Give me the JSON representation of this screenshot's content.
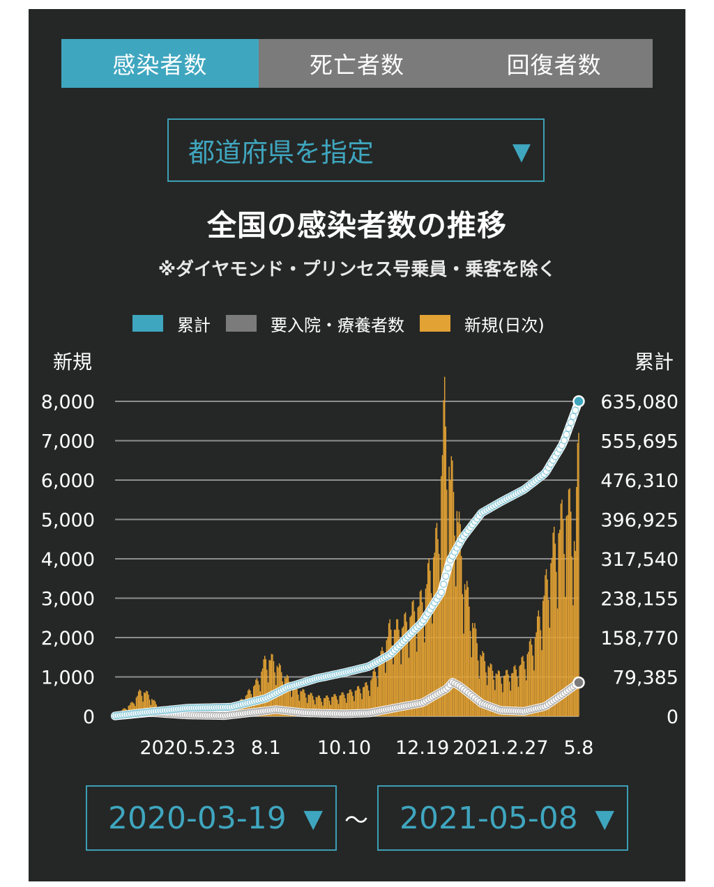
{
  "tabs": [
    {
      "label": "感染者数",
      "active": true
    },
    {
      "label": "死亡者数",
      "active": false
    },
    {
      "label": "回復者数",
      "active": false
    }
  ],
  "prefecture_select": {
    "label": "都道府県を指定",
    "arrow": "▼"
  },
  "date_range": {
    "start": "2020-03-19",
    "end": "2021-05-08",
    "separator": "〜",
    "arrow": "▼"
  },
  "colors": {
    "cumulative": "#3fa6bf",
    "inpatients": "#7b7b7b",
    "new_daily": "#e3a234",
    "line": "#ffffff",
    "grid": "#8e8e8e",
    "panel": "#252726"
  },
  "chart_data": {
    "type": "bar",
    "title": "全国の感染者数の推移",
    "subtitle": "※ダイヤモンド・プリンセス号乗員・乗客を除く",
    "legend": [
      {
        "name": "累計",
        "color": "#3fa6bf"
      },
      {
        "name": "要入院・療養者数",
        "color": "#7b7b7b"
      },
      {
        "name": "新規(日次)",
        "color": "#e3a234"
      }
    ],
    "legend_placement": "top",
    "y_left_label": "新規",
    "y_right_label": "累計",
    "y_left_ticks": [
      "0",
      "1,000",
      "2,000",
      "3,000",
      "4,000",
      "5,000",
      "6,000",
      "7,000",
      "8,000"
    ],
    "y_right_ticks": [
      "0",
      "79,385",
      "158,770",
      "238,155",
      "317,540",
      "396,925",
      "476,310",
      "555,695",
      "635,080"
    ],
    "y_left_range": [
      0,
      8000
    ],
    "y_right_range": [
      0,
      635080
    ],
    "x_range": [
      "2020-03-19",
      "2021-05-08"
    ],
    "x_ticks": [
      {
        "label": "2020.5.23",
        "date": "2020-05-23"
      },
      {
        "label": "8.1",
        "date": "2020-08-01"
      },
      {
        "label": "10.10",
        "date": "2020-10-10"
      },
      {
        "label": "12.19",
        "date": "2020-12-19"
      },
      {
        "label": "2021.2.27",
        "date": "2021-02-27"
      },
      {
        "label": "5.8",
        "date": "2021-05-08"
      }
    ],
    "grid": true,
    "new_daily_anchors": [
      [
        "2020-03-19",
        40
      ],
      [
        "2020-03-28",
        200
      ],
      [
        "2020-04-04",
        350
      ],
      [
        "2020-04-11",
        650
      ],
      [
        "2020-04-18",
        550
      ],
      [
        "2020-04-25",
        300
      ],
      [
        "2020-05-05",
        120
      ],
      [
        "2020-05-15",
        40
      ],
      [
        "2020-06-01",
        30
      ],
      [
        "2020-06-20",
        60
      ],
      [
        "2020-07-05",
        250
      ],
      [
        "2020-07-15",
        550
      ],
      [
        "2020-07-25",
        900
      ],
      [
        "2020-08-01",
        1450
      ],
      [
        "2020-08-08",
        1400
      ],
      [
        "2020-08-18",
        1000
      ],
      [
        "2020-08-28",
        700
      ],
      [
        "2020-09-08",
        550
      ],
      [
        "2020-09-20",
        450
      ],
      [
        "2020-10-01",
        500
      ],
      [
        "2020-10-10",
        550
      ],
      [
        "2020-10-20",
        650
      ],
      [
        "2020-11-01",
        800
      ],
      [
        "2020-11-10",
        1300
      ],
      [
        "2020-11-20",
        2200
      ],
      [
        "2020-11-30",
        2200
      ],
      [
        "2020-12-10",
        2600
      ],
      [
        "2020-12-19",
        2900
      ],
      [
        "2020-12-26",
        3700
      ],
      [
        "2021-01-02",
        4500
      ],
      [
        "2021-01-08",
        7700
      ],
      [
        "2021-01-13",
        6000
      ],
      [
        "2021-01-18",
        5500
      ],
      [
        "2021-01-25",
        3500
      ],
      [
        "2021-02-01",
        2500
      ],
      [
        "2021-02-08",
        1600
      ],
      [
        "2021-02-18",
        1200
      ],
      [
        "2021-02-27",
        1000
      ],
      [
        "2021-03-10",
        1100
      ],
      [
        "2021-03-20",
        1400
      ],
      [
        "2021-03-30",
        2000
      ],
      [
        "2021-04-08",
        3200
      ],
      [
        "2021-04-16",
        4300
      ],
      [
        "2021-04-24",
        5000
      ],
      [
        "2021-05-01",
        5200
      ],
      [
        "2021-05-05",
        4200
      ],
      [
        "2021-05-08",
        7200
      ]
    ],
    "cumulative_anchors": [
      [
        "2020-03-19",
        900
      ],
      [
        "2020-04-15",
        8000
      ],
      [
        "2020-05-23",
        16500
      ],
      [
        "2020-07-01",
        18500
      ],
      [
        "2020-08-01",
        36000
      ],
      [
        "2020-08-20",
        58000
      ],
      [
        "2020-09-15",
        76000
      ],
      [
        "2020-10-10",
        88000
      ],
      [
        "2020-11-01",
        100000
      ],
      [
        "2020-11-20",
        124000
      ],
      [
        "2020-12-19",
        190000
      ],
      [
        "2021-01-05",
        250000
      ],
      [
        "2021-01-13",
        315000
      ],
      [
        "2021-01-24",
        360000
      ],
      [
        "2021-02-10",
        410000
      ],
      [
        "2021-02-27",
        432000
      ],
      [
        "2021-03-20",
        457000
      ],
      [
        "2021-04-08",
        490000
      ],
      [
        "2021-04-24",
        550000
      ],
      [
        "2021-05-08",
        635080
      ]
    ],
    "inpatients_anchors": [
      [
        "2020-03-19",
        500
      ],
      [
        "2020-04-20",
        7500
      ],
      [
        "2020-05-23",
        2500
      ],
      [
        "2020-06-25",
        1200
      ],
      [
        "2020-08-01",
        11000
      ],
      [
        "2020-08-10",
        13500
      ],
      [
        "2020-09-05",
        7000
      ],
      [
        "2020-10-10",
        5000
      ],
      [
        "2020-11-01",
        6500
      ],
      [
        "2020-11-25",
        17000
      ],
      [
        "2020-12-19",
        27000
      ],
      [
        "2021-01-10",
        56000
      ],
      [
        "2021-01-15",
        69000
      ],
      [
        "2021-01-22",
        60000
      ],
      [
        "2021-02-10",
        26000
      ],
      [
        "2021-02-27",
        12000
      ],
      [
        "2021-03-20",
        10000
      ],
      [
        "2021-04-08",
        20000
      ],
      [
        "2021-04-24",
        45000
      ],
      [
        "2021-05-08",
        68000
      ]
    ]
  }
}
